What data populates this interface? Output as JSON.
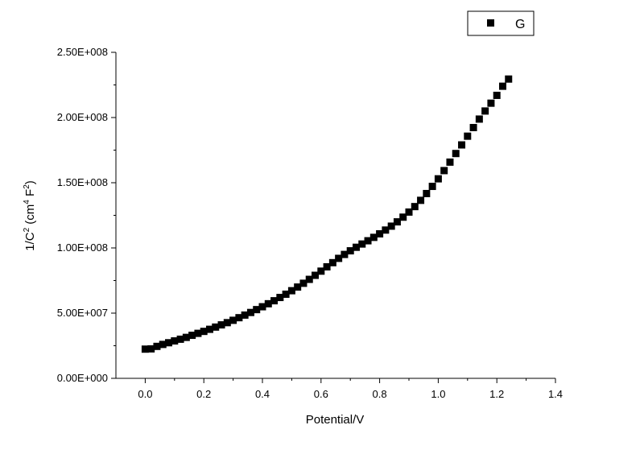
{
  "chart_data": {
    "type": "scatter",
    "xlabel": "Potential/V",
    "ylabel_parts": {
      "base": "1/C",
      "exp1": "2",
      "unit_open": " (cm",
      "exp2": "4",
      "unit_mid": " F",
      "exp3": "2",
      "unit_close": ")"
    },
    "xlim": [
      -0.1,
      1.4
    ],
    "ylim": [
      0,
      250000000
    ],
    "x_ticks": [
      0.0,
      0.2,
      0.4,
      0.6,
      0.8,
      1.0,
      1.2,
      1.4
    ],
    "x_tick_labels": [
      "0.0",
      "0.2",
      "0.4",
      "0.6",
      "0.8",
      "1.0",
      "1.2",
      "1.4"
    ],
    "y_ticks": [
      0,
      50000000,
      100000000,
      150000000,
      200000000,
      250000000
    ],
    "y_tick_labels": [
      "0.00E+000",
      "5.00E+007",
      "1.00E+008",
      "1.50E+008",
      "2.00E+008",
      "2.50E+008"
    ],
    "grid": false,
    "legend_position": "top-right",
    "series": [
      {
        "name": "G",
        "marker": "square",
        "color": "#000000",
        "points": [
          [
            0.0,
            22400000
          ],
          [
            0.02,
            22600000
          ],
          [
            0.04,
            24500000
          ],
          [
            0.06,
            26000000
          ],
          [
            0.08,
            27300000
          ],
          [
            0.1,
            28700000
          ],
          [
            0.12,
            30000000
          ],
          [
            0.14,
            31400000
          ],
          [
            0.16,
            33000000
          ],
          [
            0.18,
            34500000
          ],
          [
            0.2,
            36000000
          ],
          [
            0.22,
            37600000
          ],
          [
            0.24,
            39300000
          ],
          [
            0.26,
            41000000
          ],
          [
            0.28,
            42700000
          ],
          [
            0.3,
            44500000
          ],
          [
            0.32,
            46500000
          ],
          [
            0.34,
            48500000
          ],
          [
            0.36,
            50500000
          ],
          [
            0.38,
            52700000
          ],
          [
            0.4,
            54900000
          ],
          [
            0.42,
            57200000
          ],
          [
            0.44,
            59500000
          ],
          [
            0.46,
            62000000
          ],
          [
            0.48,
            64500000
          ],
          [
            0.5,
            67200000
          ],
          [
            0.52,
            70000000
          ],
          [
            0.54,
            72900000
          ],
          [
            0.56,
            75900000
          ],
          [
            0.58,
            79000000
          ],
          [
            0.6,
            82200000
          ],
          [
            0.62,
            85500000
          ],
          [
            0.64,
            88700000
          ],
          [
            0.66,
            92000000
          ],
          [
            0.68,
            95000000
          ],
          [
            0.7,
            97800000
          ],
          [
            0.72,
            100500000
          ],
          [
            0.74,
            103000000
          ],
          [
            0.76,
            105500000
          ],
          [
            0.78,
            108100000
          ],
          [
            0.8,
            110800000
          ],
          [
            0.82,
            113700000
          ],
          [
            0.84,
            116700000
          ],
          [
            0.86,
            120000000
          ],
          [
            0.88,
            123600000
          ],
          [
            0.9,
            127500000
          ],
          [
            0.92,
            131700000
          ],
          [
            0.94,
            136500000
          ],
          [
            0.96,
            141700000
          ],
          [
            0.98,
            147200000
          ],
          [
            1.0,
            153000000
          ],
          [
            1.02,
            159300000
          ],
          [
            1.04,
            165800000
          ],
          [
            1.06,
            172400000
          ],
          [
            1.08,
            179000000
          ],
          [
            1.1,
            185700000
          ],
          [
            1.12,
            192300000
          ],
          [
            1.14,
            198800000
          ],
          [
            1.16,
            205000000
          ],
          [
            1.18,
            211000000
          ],
          [
            1.2,
            217000000
          ],
          [
            1.22,
            224000000
          ],
          [
            1.24,
            229500000
          ]
        ]
      }
    ]
  }
}
